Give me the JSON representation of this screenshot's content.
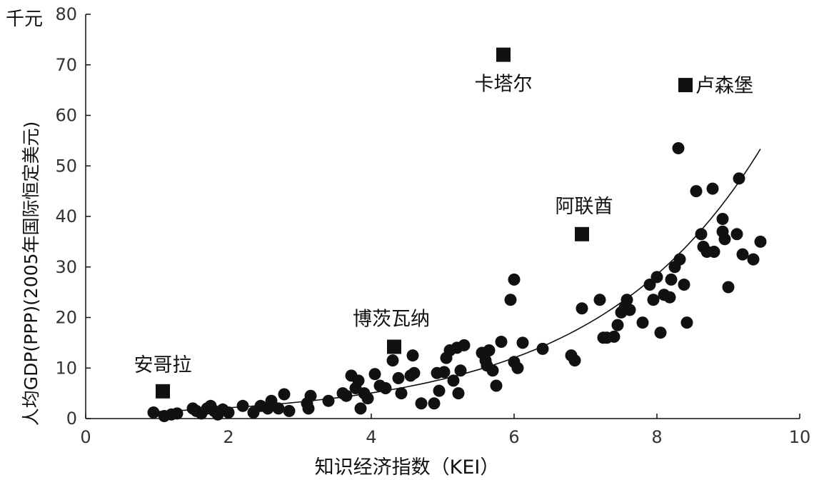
{
  "chart_data": {
    "type": "scatter",
    "unit_label": "千元",
    "xlabel": "知识经济指数（KEI）",
    "ylabel": "人均GDP(PPP)(2005年国际恒定美元)",
    "xlim": [
      0,
      10
    ],
    "ylim": [
      0,
      80
    ],
    "xticks": [
      0,
      2,
      4,
      6,
      8,
      10
    ],
    "yticks": [
      0,
      10,
      20,
      30,
      40,
      50,
      60,
      70,
      80
    ],
    "grid": false,
    "legend": "none",
    "highlighted_points": [
      {
        "label": "安哥拉",
        "x": 1.08,
        "y": 5.4
      },
      {
        "label": "博茨瓦纳",
        "x": 4.32,
        "y": 14.2
      },
      {
        "label": "卡塔尔",
        "x": 5.85,
        "y": 72.0
      },
      {
        "label": "阿联酋",
        "x": 6.95,
        "y": 36.5
      },
      {
        "label": "卢森堡",
        "x": 8.4,
        "y": 66.0
      }
    ],
    "points": [
      [
        0.95,
        1.2
      ],
      [
        1.1,
        0.5
      ],
      [
        1.2,
        0.8
      ],
      [
        1.28,
        1.0
      ],
      [
        1.5,
        2.0
      ],
      [
        1.55,
        1.5
      ],
      [
        1.62,
        1.0
      ],
      [
        1.7,
        2.0
      ],
      [
        1.75,
        2.5
      ],
      [
        1.8,
        1.5
      ],
      [
        1.85,
        0.8
      ],
      [
        1.92,
        1.8
      ],
      [
        2.0,
        1.2
      ],
      [
        2.2,
        2.5
      ],
      [
        2.35,
        1.2
      ],
      [
        2.45,
        2.5
      ],
      [
        2.55,
        2.0
      ],
      [
        2.6,
        3.5
      ],
      [
        2.7,
        2.0
      ],
      [
        2.78,
        4.8
      ],
      [
        2.85,
        1.5
      ],
      [
        3.1,
        3.0
      ],
      [
        3.12,
        2.0
      ],
      [
        3.15,
        4.5
      ],
      [
        3.4,
        3.5
      ],
      [
        3.6,
        5.0
      ],
      [
        3.65,
        4.5
      ],
      [
        3.72,
        8.5
      ],
      [
        3.78,
        6.0
      ],
      [
        3.82,
        7.5
      ],
      [
        3.85,
        2.0
      ],
      [
        3.9,
        5.0
      ],
      [
        3.95,
        4.0
      ],
      [
        4.05,
        8.8
      ],
      [
        4.12,
        6.5
      ],
      [
        4.2,
        6.0
      ],
      [
        4.3,
        11.5
      ],
      [
        4.38,
        8.0
      ],
      [
        4.42,
        5.0
      ],
      [
        4.55,
        8.5
      ],
      [
        4.58,
        12.5
      ],
      [
        4.6,
        9.0
      ],
      [
        4.7,
        3.0
      ],
      [
        4.88,
        3.0
      ],
      [
        4.92,
        9.0
      ],
      [
        4.95,
        5.5
      ],
      [
        5.02,
        9.2
      ],
      [
        5.05,
        12.0
      ],
      [
        5.1,
        13.5
      ],
      [
        5.15,
        7.5
      ],
      [
        5.2,
        14.0
      ],
      [
        5.22,
        5.0
      ],
      [
        5.25,
        9.5
      ],
      [
        5.3,
        14.5
      ],
      [
        5.55,
        13.0
      ],
      [
        5.6,
        11.5
      ],
      [
        5.62,
        10.5
      ],
      [
        5.65,
        13.5
      ],
      [
        5.7,
        9.5
      ],
      [
        5.75,
        6.5
      ],
      [
        5.82,
        15.2
      ],
      [
        5.95,
        23.5
      ],
      [
        6.0,
        11.2
      ],
      [
        6.0,
        27.5
      ],
      [
        6.05,
        10.0
      ],
      [
        6.12,
        15.0
      ],
      [
        6.4,
        13.8
      ],
      [
        6.8,
        12.5
      ],
      [
        6.85,
        11.5
      ],
      [
        6.95,
        21.8
      ],
      [
        7.2,
        23.5
      ],
      [
        7.25,
        16.0
      ],
      [
        7.3,
        16.0
      ],
      [
        7.4,
        16.2
      ],
      [
        7.45,
        18.5
      ],
      [
        7.5,
        21.0
      ],
      [
        7.55,
        22.0
      ],
      [
        7.58,
        23.5
      ],
      [
        7.62,
        21.5
      ],
      [
        7.8,
        19.0
      ],
      [
        7.9,
        26.5
      ],
      [
        7.95,
        23.5
      ],
      [
        8.0,
        28.0
      ],
      [
        8.05,
        17.0
      ],
      [
        8.1,
        24.5
      ],
      [
        8.18,
        24.0
      ],
      [
        8.2,
        27.5
      ],
      [
        8.25,
        30.0
      ],
      [
        8.3,
        53.5
      ],
      [
        8.32,
        31.5
      ],
      [
        8.42,
        19.0
      ],
      [
        8.38,
        26.5
      ],
      [
        8.55,
        45.0
      ],
      [
        8.62,
        36.5
      ],
      [
        8.65,
        34.0
      ],
      [
        8.7,
        33.0
      ],
      [
        8.78,
        45.5
      ],
      [
        8.8,
        33.0
      ],
      [
        8.92,
        37.0
      ],
      [
        8.95,
        35.5
      ],
      [
        8.92,
        39.5
      ],
      [
        9.0,
        26.0
      ],
      [
        9.12,
        36.5
      ],
      [
        9.15,
        47.5
      ],
      [
        9.2,
        32.5
      ],
      [
        9.35,
        31.5
      ],
      [
        9.45,
        35.0
      ]
    ],
    "trendline": {
      "type": "exponential",
      "a": 0.9,
      "b": 0.432,
      "x_range": [
        1.0,
        9.45
      ]
    }
  }
}
